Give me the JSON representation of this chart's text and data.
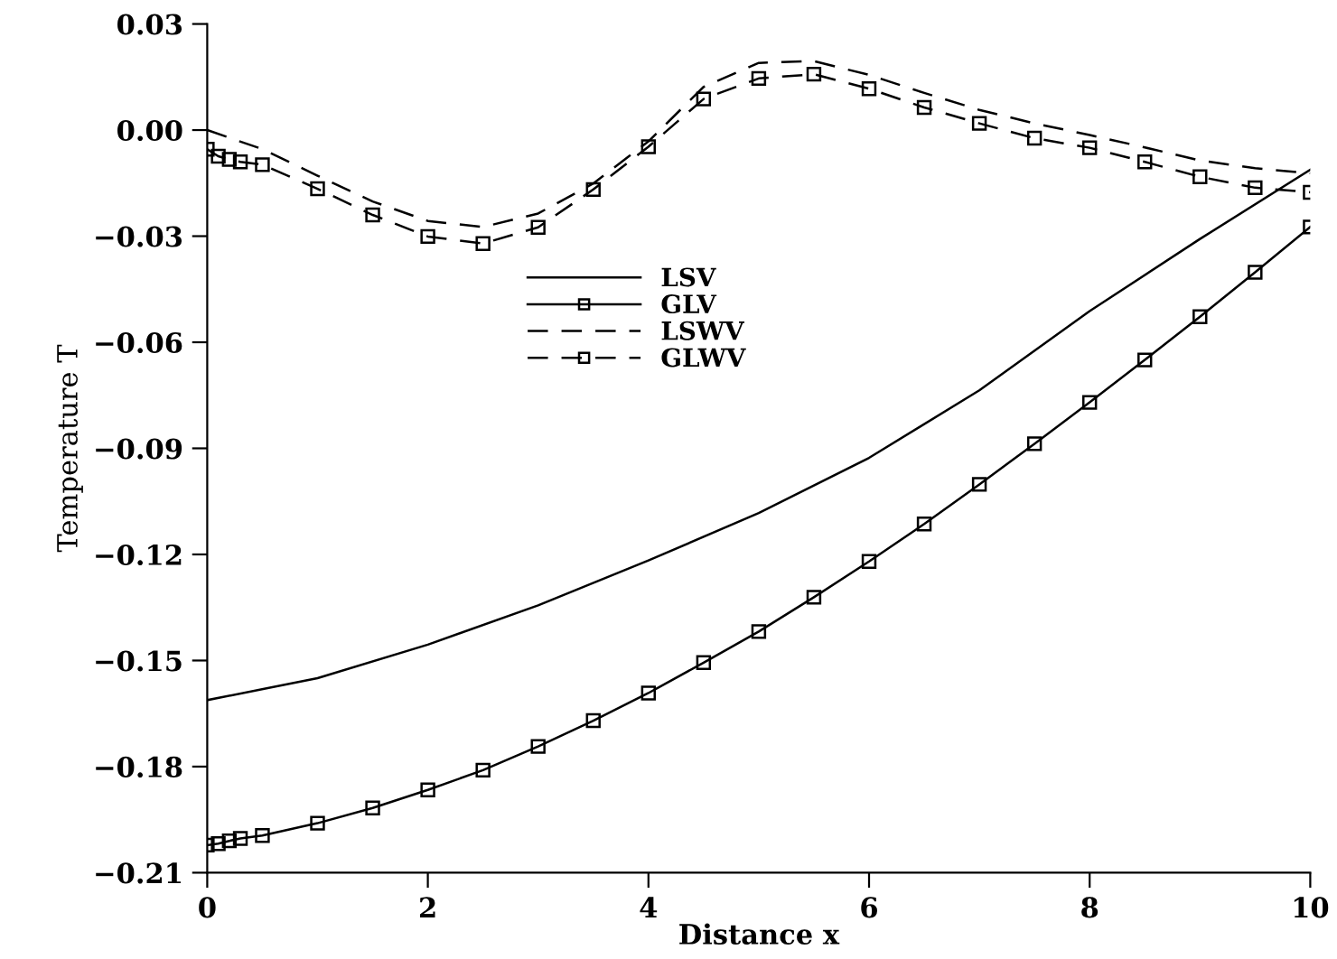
{
  "chart_data": {
    "type": "line",
    "xlabel": "Distance x",
    "ylabel": "Temperature T",
    "xlim": [
      0,
      10
    ],
    "ylim": [
      -0.21,
      0.03
    ],
    "xticks": [
      0,
      2,
      4,
      6,
      8,
      10
    ],
    "yticks": [
      {
        "value": -0.21,
        "label": "−0.21"
      },
      {
        "value": -0.18,
        "label": "−0.18"
      },
      {
        "value": -0.15,
        "label": "−0.15"
      },
      {
        "value": -0.12,
        "label": "−0.12"
      },
      {
        "value": -0.09,
        "label": "−0.09"
      },
      {
        "value": -0.06,
        "label": "−0.06"
      },
      {
        "value": -0.03,
        "label": "−0.03"
      },
      {
        "value": 0,
        "label": "0.00"
      },
      {
        "value": 0.03,
        "label": "0.03"
      }
    ],
    "grid": false,
    "legend": "top",
    "series": [
      {
        "name": "LSV",
        "color": "#000000",
        "line_style": "solid",
        "marker": "none",
        "x": [
          0,
          1,
          2,
          3,
          4,
          5,
          6,
          7,
          8,
          9,
          10
        ],
        "values": [
          -0.1612,
          -0.155,
          -0.1455,
          -0.1344,
          -0.1217,
          -0.1083,
          -0.0927,
          -0.0736,
          -0.0512,
          -0.0308,
          -0.0112
        ]
      },
      {
        "name": "GLV",
        "color": "#000000",
        "line_style": "solid",
        "marker": "square",
        "x": [
          0,
          0.1,
          0.2,
          0.3,
          0.5,
          1,
          1.5,
          2,
          2.5,
          3,
          3.5,
          4,
          4.5,
          5,
          5.5,
          6,
          6.5,
          7,
          7.5,
          8,
          8.5,
          9,
          9.5,
          10
        ],
        "values": [
          -0.2022,
          -0.2018,
          -0.201,
          -0.2003,
          -0.1995,
          -0.196,
          -0.1917,
          -0.1866,
          -0.181,
          -0.1743,
          -0.167,
          -0.1592,
          -0.1506,
          -0.1418,
          -0.1321,
          -0.122,
          -0.1114,
          -0.1002,
          -0.0887,
          -0.077,
          -0.065,
          -0.0528,
          -0.0402,
          -0.0274
        ]
      },
      {
        "name": "LSWV",
        "color": "#000000",
        "line_style": "dashed",
        "marker": "none",
        "x": [
          0,
          0.5,
          1,
          1.5,
          2,
          2.5,
          3,
          3.5,
          4,
          4.5,
          5,
          5.5,
          6,
          6.5,
          7,
          7.5,
          8,
          8.5,
          9,
          9.5,
          10
        ],
        "values": [
          0,
          -0.0054,
          -0.0129,
          -0.0202,
          -0.0257,
          -0.0274,
          -0.0236,
          -0.0151,
          -0.0032,
          0.0122,
          0.019,
          0.0195,
          0.0156,
          0.0105,
          0.0057,
          0.0019,
          -0.0014,
          -0.0049,
          -0.0086,
          -0.0108,
          -0.0122
        ]
      },
      {
        "name": "GLWV",
        "color": "#000000",
        "line_style": "dashed",
        "marker": "square",
        "x": [
          0,
          0.1,
          0.2,
          0.3,
          0.5,
          1,
          1.5,
          2,
          2.5,
          3,
          3.5,
          4,
          4.5,
          5,
          5.5,
          6,
          6.5,
          7,
          7.5,
          8,
          8.5,
          9,
          9.5,
          10
        ],
        "values": [
          -0.0054,
          -0.0074,
          -0.0083,
          -0.009,
          -0.0098,
          -0.0166,
          -0.024,
          -0.0301,
          -0.0321,
          -0.0275,
          -0.0168,
          -0.0047,
          0.0088,
          0.0146,
          0.0158,
          0.0117,
          0.0064,
          0.0019,
          -0.0023,
          -0.005,
          -0.009,
          -0.0132,
          -0.0163,
          -0.0176
        ]
      }
    ]
  }
}
